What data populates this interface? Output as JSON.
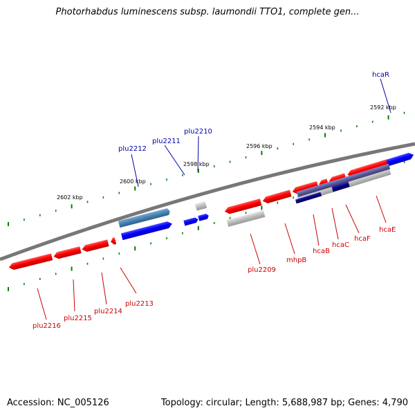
{
  "title": "Photorhabdus luminescens subsp. laumondii TTO1, complete gen...",
  "footer": {
    "accession": "Accession: NC_005126",
    "topology": "Topology: circular; Length: 5,688,987 bp; Genes: 4,790"
  },
  "colors": {
    "backbone": "#808080",
    "forward_gene": "#0000ff",
    "reverse_gene": "#ff0000",
    "other_feature": "#b0b0b0",
    "selected_gene": "#4682b4",
    "tick": "#008000",
    "label_forward": "#0000aa",
    "label_reverse": "#cc0000"
  },
  "ruler": {
    "labels": [
      "2602 kbp",
      "2600 kbp",
      "2598 kbp",
      "2596 kbp",
      "2594 kbp",
      "2592 kbp"
    ]
  },
  "gene_labels": [
    {
      "name": "hcaR",
      "strand": "forward"
    },
    {
      "name": "plu2210",
      "strand": "forward"
    },
    {
      "name": "plu2211",
      "strand": "forward"
    },
    {
      "name": "plu2212",
      "strand": "forward"
    },
    {
      "name": "plu2209",
      "strand": "reverse"
    },
    {
      "name": "mhpB",
      "strand": "reverse"
    },
    {
      "name": "hcaB",
      "strand": "reverse"
    },
    {
      "name": "hcaC",
      "strand": "reverse"
    },
    {
      "name": "hcaF",
      "strand": "reverse"
    },
    {
      "name": "hcaE",
      "strand": "reverse"
    },
    {
      "name": "plu2216",
      "strand": "reverse"
    },
    {
      "name": "plu2215",
      "strand": "reverse"
    },
    {
      "name": "plu2214",
      "strand": "reverse"
    },
    {
      "name": "plu2213",
      "strand": "reverse"
    }
  ]
}
